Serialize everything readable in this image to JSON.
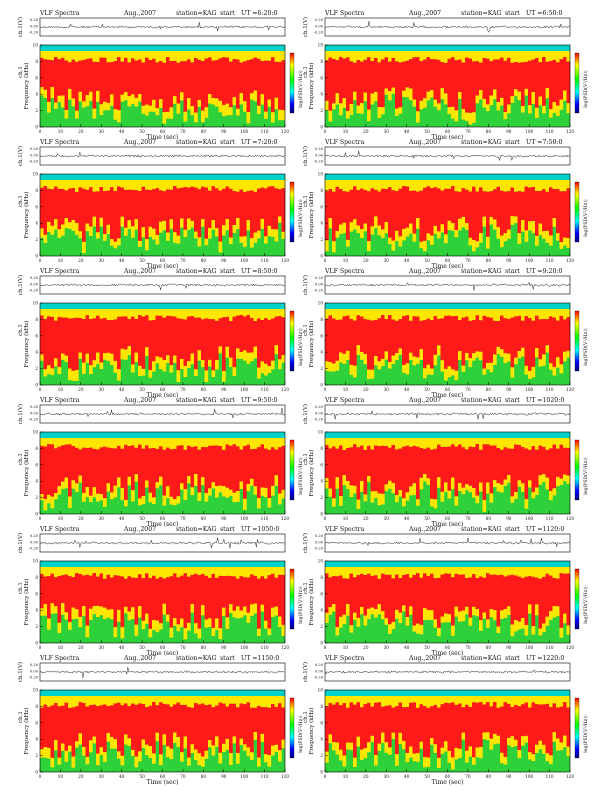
{
  "page": {
    "header_left": "VLF Spectra",
    "date": "Aug.,2007",
    "station": "station=KAG",
    "start_label": "start",
    "time_axis_label": "Time (sec)",
    "amplitude_axis_label": "ch.1(V)",
    "frequency_axis_label": "Frequency (kHz)",
    "frequency_axis_prefix": "ch.1",
    "colorbar_label": "log(PSD(V²/Hz))"
  },
  "colors": {
    "ink": "#1a1a1a",
    "spectrum_top_band": "#00d2c8",
    "spectrum_high": "#ff1a1a",
    "spectrum_mid": "#ffe600",
    "spectrum_low": "#2fd13a",
    "colorbar_stops": [
      "#ff0000",
      "#ffff00",
      "#00ff00",
      "#00ffff",
      "#0000ff",
      "#000080"
    ]
  },
  "chart_data": [
    {
      "type": "heatmap",
      "start_ut": "UT =6:20:0",
      "x": [
        0,
        10,
        20,
        30,
        40,
        50,
        60,
        70,
        80,
        90,
        100,
        110,
        120
      ],
      "ylim": [
        0,
        10
      ],
      "amp_ticks": [
        "0.20",
        "0.00",
        "-0.20"
      ],
      "freq_ticks": [
        0,
        2,
        4,
        6,
        8,
        10
      ]
    },
    {
      "type": "heatmap",
      "start_ut": "UT =6:50:0",
      "x": [
        0,
        10,
        20,
        30,
        40,
        50,
        60,
        70,
        80,
        90,
        100,
        110,
        120
      ],
      "ylim": [
        0,
        10
      ],
      "amp_ticks": [
        "0.20",
        "0.00",
        "-0.20"
      ],
      "freq_ticks": [
        0,
        2,
        4,
        6,
        8,
        10
      ]
    },
    {
      "type": "heatmap",
      "start_ut": "UT =7:20:0",
      "x": [
        0,
        10,
        20,
        30,
        40,
        50,
        60,
        70,
        80,
        90,
        100,
        110,
        120
      ],
      "ylim": [
        0,
        10
      ],
      "amp_ticks": [
        "0.20",
        "0.00",
        "-0.20"
      ],
      "freq_ticks": [
        0,
        2,
        4,
        6,
        8,
        10
      ]
    },
    {
      "type": "heatmap",
      "start_ut": "UT =7:50:0",
      "x": [
        0,
        10,
        20,
        30,
        40,
        50,
        60,
        70,
        80,
        90,
        100,
        110,
        120
      ],
      "ylim": [
        0,
        10
      ],
      "amp_ticks": [
        "0.20",
        "0.00",
        "-0.20"
      ],
      "freq_ticks": [
        0,
        2,
        4,
        6,
        8,
        10
      ]
    },
    {
      "type": "heatmap",
      "start_ut": "UT =8:50:0",
      "x": [
        0,
        10,
        20,
        30,
        40,
        50,
        60,
        70,
        80,
        90,
        100,
        110,
        120
      ],
      "ylim": [
        0,
        10
      ],
      "amp_ticks": [
        "0.20",
        "0.00",
        "-0.20"
      ],
      "freq_ticks": [
        0,
        2,
        4,
        6,
        8,
        10
      ]
    },
    {
      "type": "heatmap",
      "start_ut": "UT =9:20:0",
      "x": [
        0,
        10,
        20,
        30,
        40,
        50,
        60,
        70,
        80,
        90,
        100,
        110,
        120
      ],
      "ylim": [
        0,
        10
      ],
      "amp_ticks": [
        "0.20",
        "0.00",
        "-0.20"
      ],
      "freq_ticks": [
        0,
        2,
        4,
        6,
        8,
        10
      ]
    },
    {
      "type": "heatmap",
      "start_ut": "UT =9:50:0",
      "x": [
        0,
        10,
        20,
        30,
        40,
        50,
        60,
        70,
        80,
        90,
        100,
        110,
        120
      ],
      "ylim": [
        0,
        10
      ],
      "amp_ticks": [
        "0.20",
        "0.00",
        "-0.20"
      ],
      "freq_ticks": [
        0,
        2,
        4,
        6,
        8,
        10
      ]
    },
    {
      "type": "heatmap",
      "start_ut": "UT =1020:0",
      "x": [
        0,
        10,
        20,
        30,
        40,
        50,
        60,
        70,
        80,
        90,
        100,
        110,
        120
      ],
      "ylim": [
        0,
        10
      ],
      "amp_ticks": [
        "0.20",
        "0.00",
        "-0.20"
      ],
      "freq_ticks": [
        0,
        2,
        4,
        6,
        8,
        10
      ]
    },
    {
      "type": "heatmap",
      "start_ut": "UT =1050:0",
      "x": [
        0,
        10,
        20,
        30,
        40,
        50,
        60,
        70,
        80,
        90,
        100,
        110,
        120
      ],
      "ylim": [
        0,
        10
      ],
      "amp_ticks": [
        "0.20",
        "0.00",
        "-0.20"
      ],
      "freq_ticks": [
        0,
        2,
        4,
        6,
        8,
        10
      ]
    },
    {
      "type": "heatmap",
      "start_ut": "UT =1120:0",
      "x": [
        0,
        10,
        20,
        30,
        40,
        50,
        60,
        70,
        80,
        90,
        100,
        110,
        120
      ],
      "ylim": [
        0,
        10
      ],
      "amp_ticks": [
        "0.20",
        "0.00",
        "-0.20"
      ],
      "freq_ticks": [
        0,
        2,
        4,
        6,
        8,
        10
      ]
    },
    {
      "type": "heatmap",
      "start_ut": "UT =1150:0",
      "x": [
        0,
        10,
        20,
        30,
        40,
        50,
        60,
        70,
        80,
        90,
        100,
        110,
        120
      ],
      "ylim": [
        0,
        10
      ],
      "amp_ticks": [
        "0.20",
        "0.00",
        "-0.20"
      ],
      "freq_ticks": [
        0,
        2,
        4,
        6,
        8,
        10
      ]
    },
    {
      "type": "heatmap",
      "start_ut": "UT =1220:0",
      "x": [
        0,
        10,
        20,
        30,
        40,
        50,
        60,
        70,
        80,
        90,
        100,
        110,
        120
      ],
      "ylim": [
        0,
        10
      ],
      "amp_ticks": [
        "0.20",
        "0.00",
        "-0.20"
      ],
      "freq_ticks": [
        0,
        2,
        4,
        6,
        8,
        10
      ]
    }
  ]
}
